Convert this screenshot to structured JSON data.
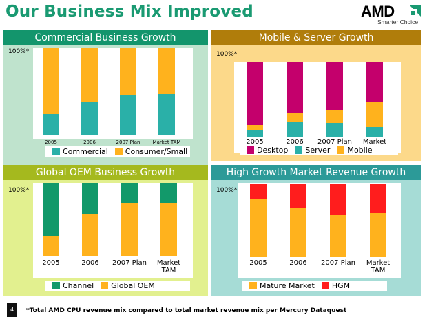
{
  "title": "Our Business Mix Improved",
  "logo": {
    "name": "AMD",
    "tagline": "Smarter Choice"
  },
  "colors": {
    "title": "#1a9a72",
    "teal": "#2ab0a8",
    "gold": "#ffb21d",
    "magenta": "#c4006c",
    "green": "#12996a",
    "red": "#ff1d1d"
  },
  "footer": {
    "page_number": "4",
    "note": "*Total AMD CPU revenue mix compared to total market revenue mix per Mercury Dataquest"
  },
  "chart_data": [
    {
      "type": "bar",
      "stacked": true,
      "title": "Commercial Business Growth",
      "ylabel": "100%*",
      "categories": [
        "2005",
        "2006",
        "2007 Plan",
        "Market TAM"
      ],
      "series": [
        {
          "name": "Commercial",
          "color": "#2ab0a8",
          "values": [
            24,
            38,
            46,
            47
          ]
        },
        {
          "name": "Consumer/Small",
          "color": "#ffb21d",
          "values": [
            76,
            62,
            54,
            53
          ]
        }
      ],
      "ylim": [
        0,
        100
      ]
    },
    {
      "type": "bar",
      "stacked": true,
      "title": "Mobile & Server Growth",
      "ylabel": "100%*",
      "categories": [
        "2005",
        "2006",
        "2007 Plan",
        "Market TAM"
      ],
      "series": [
        {
          "name": "Server",
          "color": "#2ab0a8",
          "values": [
            10,
            20,
            19,
            14
          ]
        },
        {
          "name": "Mobile",
          "color": "#ffb21d",
          "values": [
            6,
            13,
            17,
            33
          ]
        },
        {
          "name": "Desktop",
          "color": "#c4006c",
          "values": [
            84,
            67,
            64,
            53
          ]
        }
      ],
      "ylim": [
        0,
        100
      ]
    },
    {
      "type": "bar",
      "stacked": true,
      "title": "Global OEM Business Growth",
      "ylabel": "100%*",
      "categories": [
        "2005",
        "2006",
        "2007 Plan",
        "Market TAM"
      ],
      "series": [
        {
          "name": "Global OEM",
          "color": "#ffb21d",
          "values": [
            26,
            58,
            73,
            73
          ]
        },
        {
          "name": "Channel",
          "color": "#12996a",
          "values": [
            74,
            42,
            27,
            27
          ]
        }
      ],
      "ylim": [
        0,
        100
      ]
    },
    {
      "type": "bar",
      "stacked": true,
      "title": "High Growth Market Revenue Growth",
      "ylabel": "100%*",
      "categories": [
        "2005",
        "2006",
        "2007 Plan",
        "Market TAM"
      ],
      "series": [
        {
          "name": "Mature Market",
          "color": "#ffb21d",
          "values": [
            80,
            68,
            58,
            60
          ]
        },
        {
          "name": "HGM",
          "color": "#ff1d1d",
          "values": [
            20,
            32,
            42,
            40
          ]
        }
      ],
      "ylim": [
        0,
        100
      ]
    }
  ],
  "legends": [
    [
      {
        "label": "Commercial",
        "series": 0
      },
      {
        "label": "Consumer/Small",
        "series": 1
      }
    ],
    [
      {
        "label": "Desktop",
        "series": 2
      },
      {
        "label": "Server",
        "series": 0
      },
      {
        "label": "Mobile",
        "series": 1
      }
    ],
    [
      {
        "label": "Channel",
        "series": 1
      },
      {
        "label": "Global OEM",
        "series": 0
      }
    ],
    [
      {
        "label": "Mature Market",
        "series": 0
      },
      {
        "label": "HGM",
        "series": 1
      }
    ]
  ]
}
